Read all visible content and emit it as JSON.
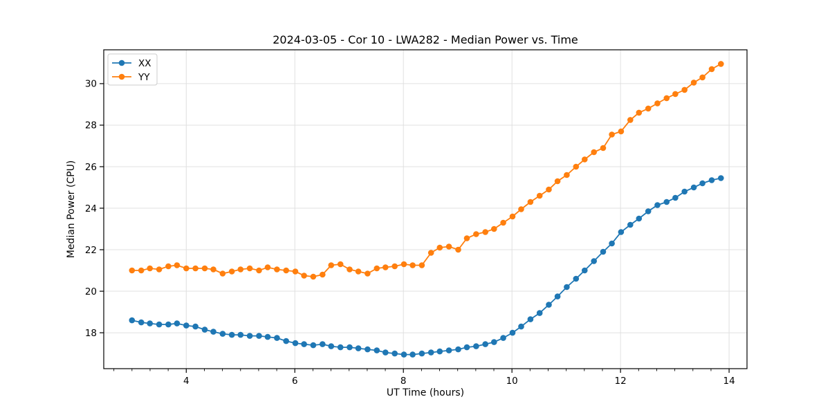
{
  "chart_data": {
    "type": "line",
    "title": "2024-03-05 - Cor 10 - LWA282 - Median Power vs. Time",
    "xlabel": "UT Time (hours)",
    "ylabel": "Median Power (CPU)",
    "xlim": [
      2.48,
      14.33
    ],
    "ylim": [
      16.27,
      31.63
    ],
    "xticks": [
      4,
      6,
      8,
      10,
      12,
      14
    ],
    "yticks": [
      18,
      20,
      22,
      24,
      26,
      28,
      30
    ],
    "minor_ticks_x_per_major": 6,
    "grid": true,
    "legend_position": "upper left",
    "marker": "circle",
    "x": [
      3.0,
      3.17,
      3.33,
      3.5,
      3.67,
      3.83,
      4.0,
      4.17,
      4.34,
      4.5,
      4.67,
      4.84,
      5.0,
      5.17,
      5.34,
      5.5,
      5.67,
      5.84,
      6.01,
      6.17,
      6.34,
      6.51,
      6.67,
      6.84,
      7.01,
      7.17,
      7.34,
      7.51,
      7.67,
      7.84,
      8.01,
      8.17,
      8.34,
      8.51,
      8.67,
      8.84,
      9.01,
      9.17,
      9.34,
      9.51,
      9.67,
      9.84,
      10.01,
      10.17,
      10.34,
      10.51,
      10.68,
      10.84,
      11.01,
      11.18,
      11.34,
      11.51,
      11.68,
      11.84,
      12.01,
      12.18,
      12.34,
      12.51,
      12.68,
      12.85,
      13.01,
      13.18,
      13.35,
      13.51,
      13.68,
      13.85
    ],
    "series": [
      {
        "name": "XX",
        "color": "#1f77b4",
        "values": [
          18.6,
          18.5,
          18.45,
          18.4,
          18.4,
          18.45,
          18.35,
          18.3,
          18.15,
          18.05,
          17.95,
          17.9,
          17.9,
          17.85,
          17.85,
          17.8,
          17.75,
          17.6,
          17.5,
          17.45,
          17.4,
          17.45,
          17.35,
          17.3,
          17.3,
          17.25,
          17.2,
          17.15,
          17.05,
          17.0,
          16.95,
          16.95,
          17.0,
          17.05,
          17.1,
          17.15,
          17.2,
          17.3,
          17.35,
          17.45,
          17.55,
          17.75,
          18.0,
          18.3,
          18.65,
          18.95,
          19.35,
          19.75,
          20.2,
          20.6,
          21.0,
          21.45,
          21.9,
          22.3,
          22.85,
          23.2,
          23.5,
          23.85,
          24.15,
          24.3,
          24.5,
          24.8,
          25.0,
          25.2,
          25.35,
          25.45
        ]
      },
      {
        "name": "YY",
        "color": "#ff7f0e",
        "values": [
          21.0,
          21.0,
          21.1,
          21.05,
          21.2,
          21.25,
          21.1,
          21.1,
          21.1,
          21.05,
          20.85,
          20.95,
          21.05,
          21.1,
          21.0,
          21.15,
          21.05,
          21.0,
          20.95,
          20.75,
          20.7,
          20.8,
          21.25,
          21.3,
          21.05,
          20.95,
          20.85,
          21.1,
          21.15,
          21.2,
          21.3,
          21.25,
          21.25,
          21.85,
          22.1,
          22.15,
          22.0,
          22.55,
          22.75,
          22.85,
          23.0,
          23.3,
          23.6,
          23.95,
          24.3,
          24.6,
          24.9,
          25.3,
          25.6,
          26.0,
          26.35,
          26.7,
          26.9,
          27.55,
          27.7,
          28.25,
          28.6,
          28.8,
          29.05,
          29.3,
          29.5,
          29.7,
          30.05,
          30.3,
          30.7,
          30.95
        ]
      }
    ]
  },
  "style": {
    "grid_color": "#e0e0e0",
    "spine_color": "#000000",
    "legend_border_color": "#cccccc",
    "legend_bg": "#ffffff"
  }
}
